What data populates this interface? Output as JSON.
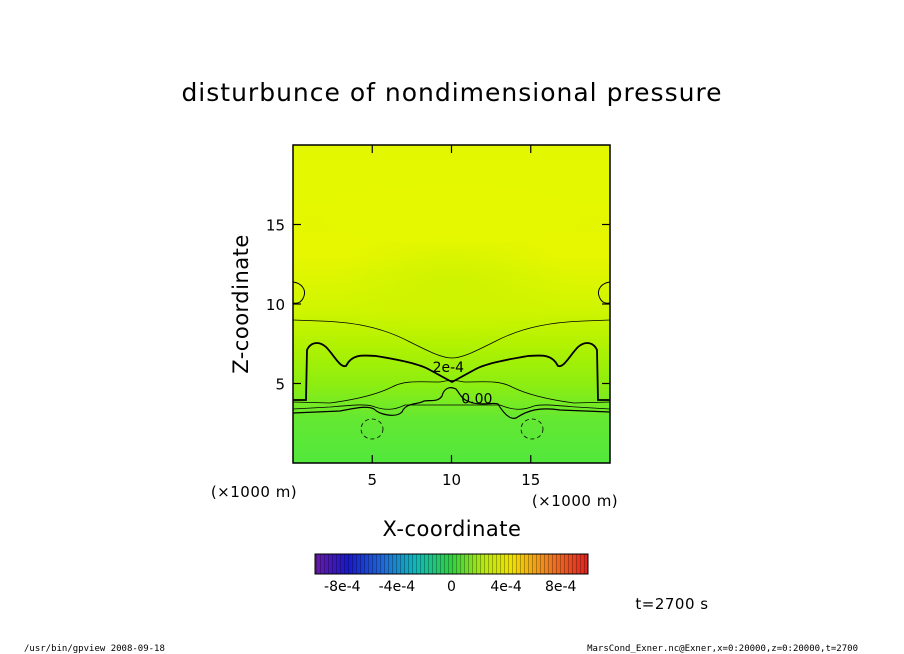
{
  "chart_data": {
    "type": "heatmap",
    "title": "disturbunce of nondimensional pressure",
    "xlabel": "X-coordinate",
    "ylabel": "Z-coordinate",
    "x_unit": "(×1000 m)",
    "y_unit": "(×1000 m)",
    "xlim": [
      0,
      20
    ],
    "ylim": [
      0,
      20
    ],
    "x_ticks": [
      5,
      10,
      15
    ],
    "y_ticks": [
      5,
      10,
      15
    ],
    "contour_labels": [
      {
        "text": "2e-4",
        "x": 9.8,
        "z": 5.8
      },
      {
        "text": "0.00",
        "x": 11.6,
        "z": 3.8
      }
    ],
    "colorbar": {
      "range": [
        -0.001,
        0.001
      ],
      "tick_labels": [
        "-8e-4",
        "-4e-4",
        "0",
        "4e-4",
        "8e-4"
      ],
      "tick_values": [
        -0.0008,
        -0.0004,
        0,
        0.0004,
        0.0008
      ]
    },
    "time_label": "t=2700 s",
    "colors": {
      "upper": "#dff700",
      "mid": "#a8f200",
      "lower": "#55e83a"
    }
  },
  "footer": {
    "left": "/usr/bin/gpview   2008-09-18",
    "right": "MarsCond_Exner.nc@Exner,x=0:20000,z=0:20000,t=2700"
  }
}
